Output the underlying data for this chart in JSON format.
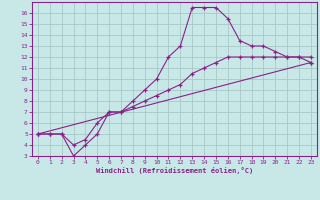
{
  "background_color": "#c8e8e8",
  "grid_color": "#a8c8c8",
  "line_color": "#882288",
  "marker": "+",
  "xlabel": "Windchill (Refroidissement éolien,°C)",
  "xlim": [
    -0.5,
    23.5
  ],
  "ylim": [
    3,
    17
  ],
  "xticks": [
    0,
    1,
    2,
    3,
    4,
    5,
    6,
    7,
    8,
    9,
    10,
    11,
    12,
    13,
    14,
    15,
    16,
    17,
    18,
    19,
    20,
    21,
    22,
    23
  ],
  "yticks": [
    3,
    4,
    5,
    6,
    7,
    8,
    9,
    10,
    11,
    12,
    13,
    14,
    15,
    16
  ],
  "series1_x": [
    0,
    1,
    2,
    3,
    4,
    5,
    6,
    7,
    8,
    9,
    10,
    11,
    12,
    13,
    14,
    15,
    16,
    17,
    18,
    19,
    20,
    21,
    22,
    23
  ],
  "series1_y": [
    5,
    5,
    5,
    3,
    4,
    5,
    7,
    7,
    8,
    9,
    10,
    12,
    13,
    16.5,
    16.5,
    16.5,
    15.5,
    13.5,
    13,
    13,
    12.5,
    12,
    12,
    11.5
  ],
  "series2_x": [
    0,
    1,
    2,
    3,
    4,
    5,
    6,
    7,
    8,
    9,
    10,
    11,
    12,
    13,
    14,
    15,
    16,
    17,
    18,
    19,
    20,
    21,
    22,
    23
  ],
  "series2_y": [
    5,
    5,
    5,
    4,
    4.5,
    6,
    7,
    7,
    7.5,
    8,
    8.5,
    9,
    9.5,
    10.5,
    11,
    11.5,
    12,
    12,
    12,
    12,
    12,
    12,
    12,
    12
  ],
  "series3_x": [
    0,
    23
  ],
  "series3_y": [
    5,
    11.5
  ]
}
